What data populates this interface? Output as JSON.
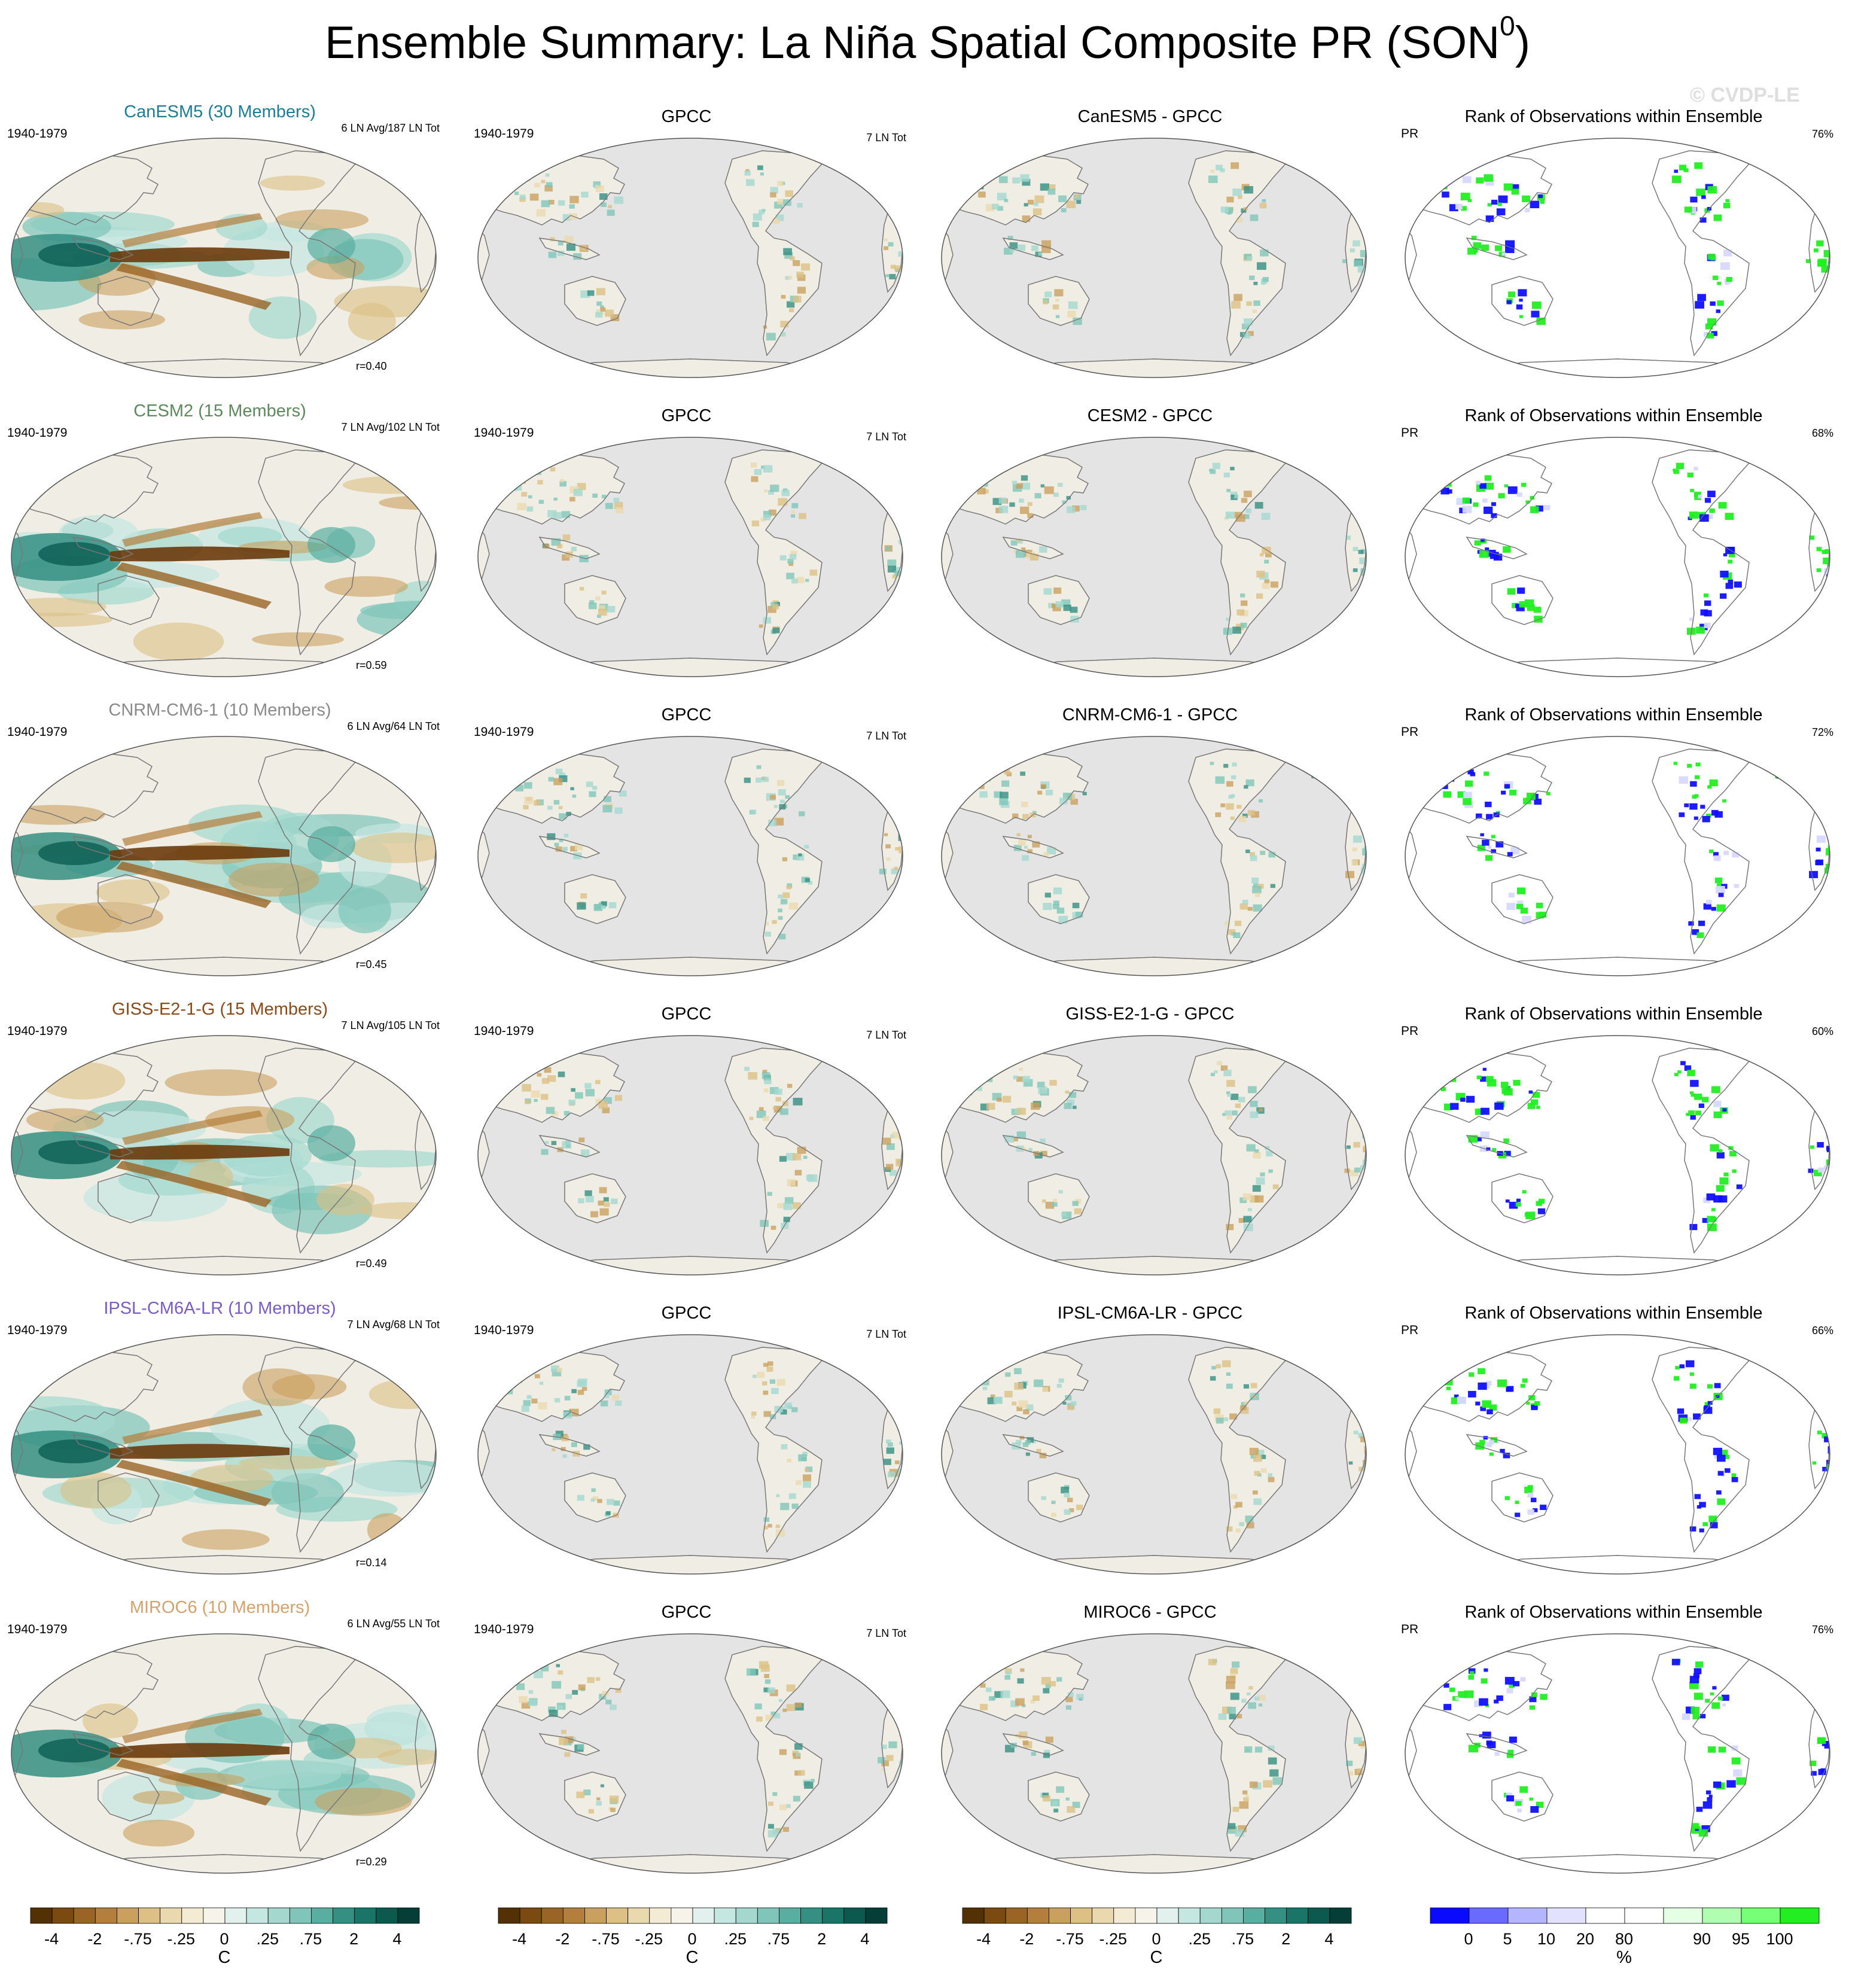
{
  "figure": {
    "title": "Ensemble Summary: La Niña Spatial Composite PR (SON",
    "title_sup": "0",
    "title_close": ")",
    "watermark": "© CVDP-LE"
  },
  "colors": {
    "land_fill": "#efede4",
    "ocean_gray": "#e4e4e4",
    "rank_white": "#ffffff",
    "brown_dark": "#6b3a0b",
    "teal_dark": "#0b5d52",
    "rank_blue": "#1010ff",
    "rank_green": "#22ee22",
    "coast": "#777777"
  },
  "rows": [
    {
      "model": "CanESM5 (30 Members)",
      "model_color": "#1c7d96",
      "period": "1940-1979",
      "counts": "6 LN Avg/187 LN Tot",
      "corr": "r=0.40",
      "obs_title": "GPCC",
      "obs_period": "1940-1979",
      "obs_counts": "7 LN Tot",
      "diff_title": "CanESM5 - GPCC",
      "rank_title": "Rank of Observations within Ensemble",
      "rank_var": "PR",
      "rank_pct": "76%"
    },
    {
      "model": "CESM2 (15 Members)",
      "model_color": "#5c8a5c",
      "period": "1940-1979",
      "counts": "7 LN Avg/102 LN Tot",
      "corr": "r=0.59",
      "obs_title": "GPCC",
      "obs_period": "1940-1979",
      "obs_counts": "7 LN Tot",
      "diff_title": "CESM2 - GPCC",
      "rank_title": "Rank of Observations within Ensemble",
      "rank_var": "PR",
      "rank_pct": "68%"
    },
    {
      "model": "CNRM-CM6-1 (10 Members)",
      "model_color": "#8a8a8a",
      "period": "1940-1979",
      "counts": "6 LN Avg/64 LN Tot",
      "corr": "r=0.45",
      "obs_title": "GPCC",
      "obs_period": "1940-1979",
      "obs_counts": "7 LN Tot",
      "diff_title": "CNRM-CM6-1 - GPCC",
      "rank_title": "Rank of Observations within Ensemble",
      "rank_var": "PR",
      "rank_pct": "72%"
    },
    {
      "model": "GISS-E2-1-G (15 Members)",
      "model_color": "#8a4a1a",
      "period": "1940-1979",
      "counts": "7 LN Avg/105 LN Tot",
      "corr": "r=0.49",
      "obs_title": "GPCC",
      "obs_period": "1940-1979",
      "obs_counts": "7 LN Tot",
      "diff_title": "GISS-E2-1-G - GPCC",
      "rank_title": "Rank of Observations within Ensemble",
      "rank_var": "PR",
      "rank_pct": "60%"
    },
    {
      "model": "IPSL-CM6A-LR (10 Members)",
      "model_color": "#7b5bc4",
      "period": "1940-1979",
      "counts": "7 LN Avg/68 LN Tot",
      "corr": "r=0.14",
      "obs_title": "GPCC",
      "obs_period": "1940-1979",
      "obs_counts": "7 LN Tot",
      "diff_title": "IPSL-CM6A-LR - GPCC",
      "rank_title": "Rank of Observations within Ensemble",
      "rank_var": "PR",
      "rank_pct": "66%"
    },
    {
      "model": "MIROC6 (10 Members)",
      "model_color": "#d4a26c",
      "period": "1940-1979",
      "counts": "6 LN Avg/55 LN Tot",
      "corr": "r=0.29",
      "obs_title": "GPCC",
      "obs_period": "1940-1979",
      "obs_counts": "7 LN Tot",
      "diff_title": "MIROC6 - GPCC",
      "rank_title": "Rank of Observations within Ensemble",
      "rank_var": "PR",
      "rank_pct": "76%"
    }
  ],
  "colorbars": {
    "diverging": {
      "colors": [
        "#543005",
        "#7a4a10",
        "#9a6424",
        "#b47f3c",
        "#c9a05e",
        "#dcc084",
        "#ead9ae",
        "#f3ebd3",
        "#f5f3ea",
        "#e3f1ee",
        "#c5e7e1",
        "#a4d8cf",
        "#7fc5b9",
        "#58aea0",
        "#358f82",
        "#1b7468",
        "#0c5a4f",
        "#043e36"
      ],
      "labels": [
        "-4",
        "-2",
        "-.75",
        "-.25",
        "0",
        ".25",
        ".75",
        "2",
        "4"
      ],
      "unit": "C"
    },
    "rank": {
      "colors": [
        "#0a0aff",
        "#6a6aff",
        "#b4b4ff",
        "#e2e2ff",
        "#ffffff",
        "#ffffff",
        "#e4ffe4",
        "#b0ffb0",
        "#78ff78",
        "#22ee22"
      ],
      "labels": [
        "0",
        "5",
        "10",
        "20",
        "80",
        "90",
        "95",
        "100"
      ],
      "unit": "%"
    }
  }
}
